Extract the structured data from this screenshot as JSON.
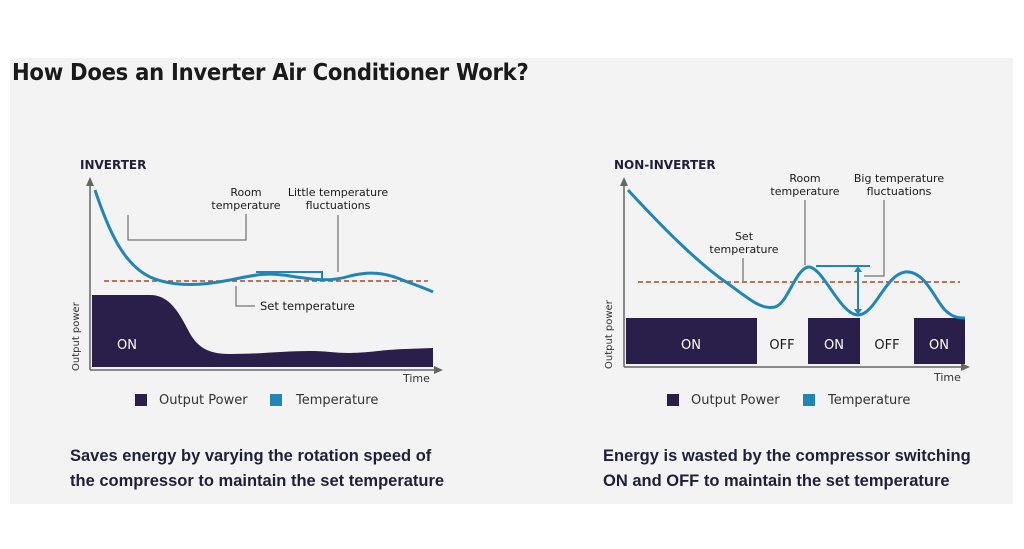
{
  "title": "How Does an Inverter Air Conditioner Work?",
  "colors": {
    "output_power": "#2a1f4a",
    "temperature": "#1f87b8",
    "set_temperature_line": "#b04a2a"
  },
  "inverter": {
    "heading": "INVERTER",
    "y_axis_label": "Output power",
    "x_axis_label": "Time",
    "room_temperature_lines": [
      "Room",
      "temperature"
    ],
    "little_fluctuations_lines": [
      "Little temperature",
      "fluctuations"
    ],
    "set_temperature_label": "Set temperature",
    "on_label": "ON",
    "legend": {
      "output_power": "Output Power",
      "temperature": "Temperature"
    },
    "caption_lines": [
      "Saves energy by varying the rotation speed of",
      "the compressor to maintain the set temperature"
    ]
  },
  "non_inverter": {
    "heading": "NON-INVERTER",
    "y_axis_label": "Output power",
    "x_axis_label": "Time",
    "room_temperature_lines": [
      "Room",
      "temperature"
    ],
    "big_fluctuations_lines": [
      "Big temperature",
      "fluctuations"
    ],
    "set_temperature_lines": [
      "Set",
      "temperature"
    ],
    "segments": [
      "ON",
      "OFF",
      "ON",
      "OFF",
      "ON"
    ],
    "legend": {
      "output_power": "Output Power",
      "temperature": "Temperature"
    },
    "caption_lines": [
      "Energy is wasted by the compressor switching",
      "ON and OFF to maintain the set temperature"
    ]
  }
}
